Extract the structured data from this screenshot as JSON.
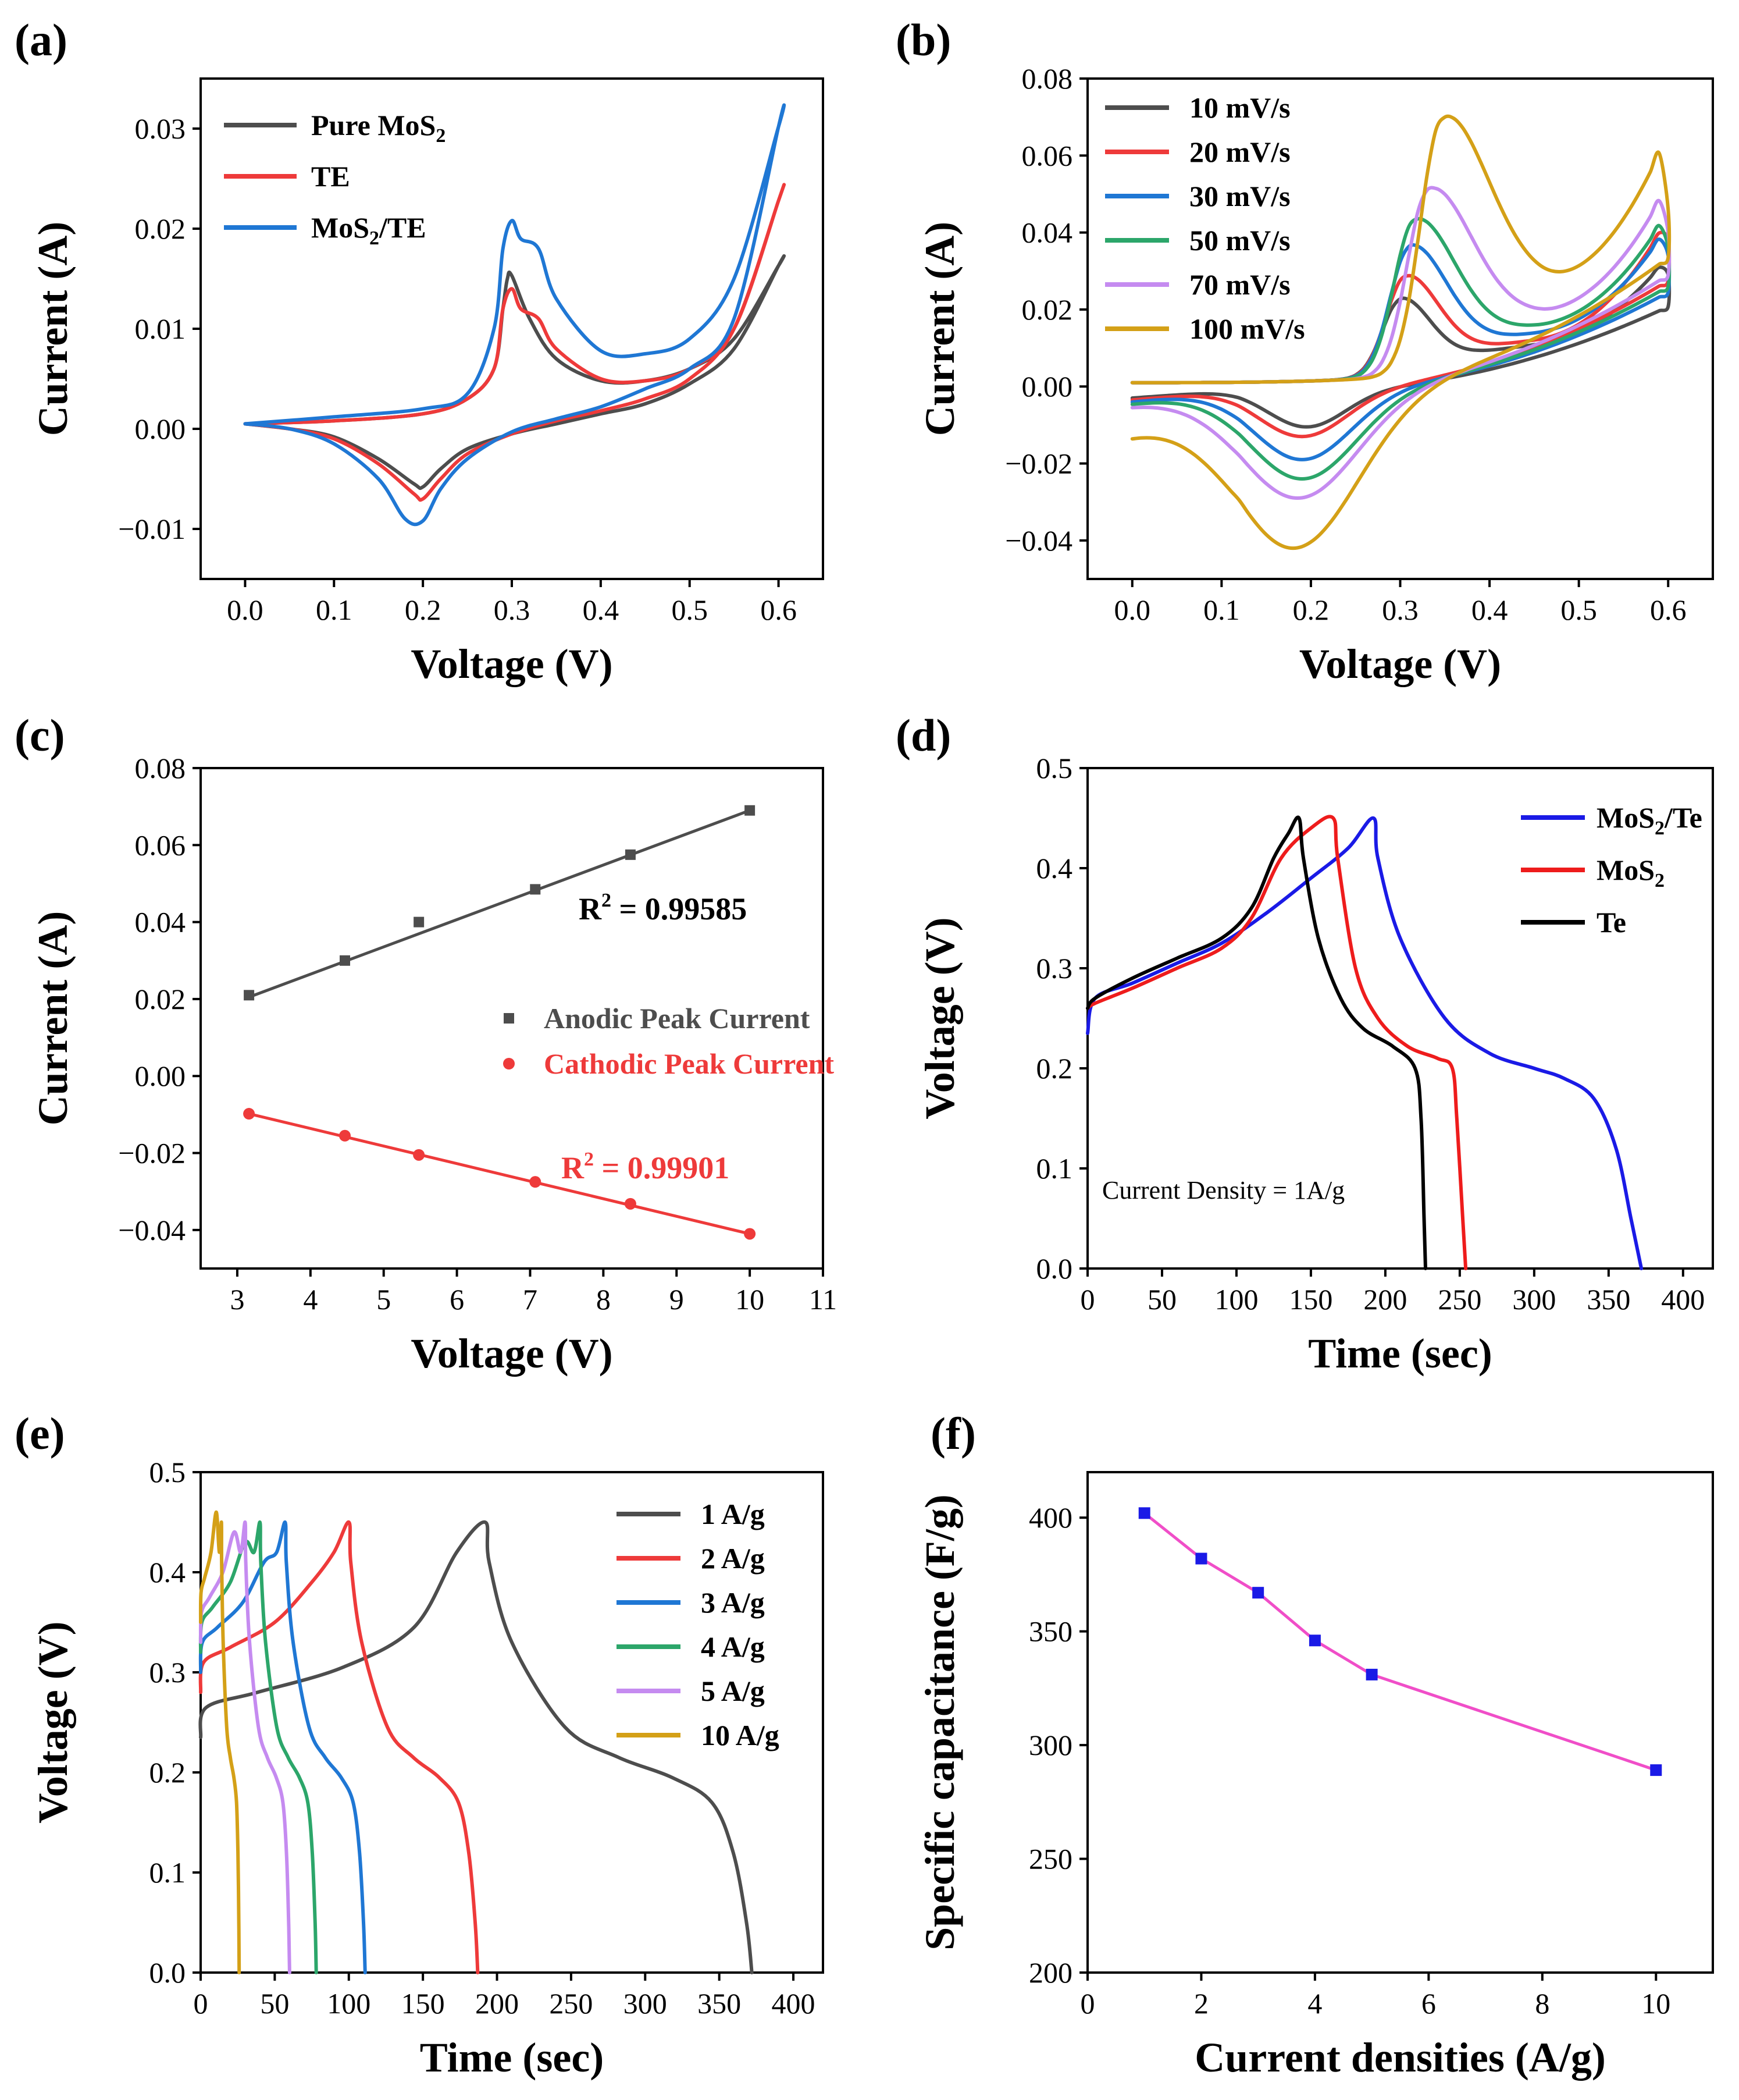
{
  "chart_data": [
    {
      "panel": "(a)",
      "type": "line",
      "xlabel": "Voltage (V)",
      "ylabel": "Current (A)",
      "xlim": [
        -0.05,
        0.65
      ],
      "ylim": [
        -0.015,
        0.035
      ],
      "xticks": [
        0.0,
        0.1,
        0.2,
        0.3,
        0.4,
        0.5,
        0.6
      ],
      "yticks": [
        -0.01,
        0.0,
        0.01,
        0.02,
        0.03
      ],
      "legend_position": "top-left",
      "series": [
        {
          "name": "Pure MoS",
          "name_sub": "2",
          "name_post": "",
          "color": "#4d4d4d",
          "x": [
            0.0,
            0.1,
            0.2,
            0.25,
            0.28,
            0.29,
            0.295,
            0.3,
            0.32,
            0.35,
            0.4,
            0.45,
            0.5,
            0.55,
            0.6,
            0.6,
            0.55,
            0.5,
            0.45,
            0.4,
            0.35,
            0.3,
            0.25,
            0.22,
            0.2,
            0.19,
            0.15,
            0.1,
            0.05,
            0.0
          ],
          "y": [
            0.0005,
            0.0008,
            0.0015,
            0.003,
            0.006,
            0.012,
            0.015,
            0.0153,
            0.011,
            0.007,
            0.0048,
            0.0048,
            0.006,
            0.009,
            0.0163,
            0.0163,
            0.008,
            0.0045,
            0.0025,
            0.0015,
            0.0005,
            -0.0005,
            -0.002,
            -0.004,
            -0.0058,
            -0.0055,
            -0.003,
            -0.0008,
            0.0,
            0.0005
          ]
        },
        {
          "name": "TE",
          "name_sub": "",
          "name_post": "",
          "color": "#ee3a3a",
          "x": [
            0.0,
            0.1,
            0.2,
            0.25,
            0.28,
            0.29,
            0.3,
            0.31,
            0.33,
            0.35,
            0.4,
            0.45,
            0.5,
            0.55,
            0.6,
            0.6,
            0.55,
            0.5,
            0.45,
            0.4,
            0.35,
            0.3,
            0.25,
            0.22,
            0.2,
            0.19,
            0.15,
            0.1,
            0.05,
            0.0
          ],
          "y": [
            0.0005,
            0.0008,
            0.0015,
            0.003,
            0.006,
            0.012,
            0.014,
            0.012,
            0.011,
            0.008,
            0.005,
            0.0048,
            0.006,
            0.01,
            0.0228,
            0.0228,
            0.01,
            0.005,
            0.003,
            0.0018,
            0.0008,
            -0.0005,
            -0.0025,
            -0.005,
            -0.007,
            -0.0065,
            -0.0035,
            -0.001,
            0.0,
            0.0005
          ]
        },
        {
          "name": "MoS",
          "name_sub": "2",
          "name_post": "/TE",
          "color": "#1f77d4",
          "x": [
            0.0,
            0.1,
            0.2,
            0.25,
            0.28,
            0.29,
            0.3,
            0.31,
            0.33,
            0.35,
            0.4,
            0.45,
            0.5,
            0.55,
            0.6,
            0.6,
            0.55,
            0.5,
            0.45,
            0.4,
            0.35,
            0.3,
            0.25,
            0.22,
            0.2,
            0.18,
            0.15,
            0.1,
            0.05,
            0.0
          ],
          "y": [
            0.0005,
            0.0012,
            0.002,
            0.0035,
            0.01,
            0.018,
            0.0208,
            0.019,
            0.018,
            0.013,
            0.0078,
            0.0075,
            0.009,
            0.015,
            0.0302,
            0.0302,
            0.011,
            0.006,
            0.004,
            0.0022,
            0.001,
            -0.0003,
            -0.003,
            -0.006,
            -0.0092,
            -0.009,
            -0.005,
            -0.0015,
            0.0,
            0.0005
          ]
        }
      ]
    },
    {
      "panel": "(b)",
      "type": "line",
      "xlabel": "Voltage (V)",
      "ylabel": "Current (A)",
      "xlim": [
        -0.05,
        0.65
      ],
      "ylim": [
        -0.05,
        0.08
      ],
      "xticks": [
        0.0,
        0.1,
        0.2,
        0.3,
        0.4,
        0.5,
        0.6
      ],
      "yticks": [
        -0.04,
        -0.02,
        0.0,
        0.02,
        0.04,
        0.06,
        0.08
      ],
      "legend_position": "top-left",
      "series": [
        {
          "name": "10 mV/s",
          "color": "#4d4d4d",
          "ia": 0.021,
          "ic": -0.0095,
          "xa": 0.3,
          "xc": 0.195,
          "end": 0.029,
          "tail": 0.008
        },
        {
          "name": "20 mV/s",
          "color": "#ee3a3a",
          "ia": 0.027,
          "ic": -0.012,
          "xa": 0.305,
          "xc": 0.19,
          "end": 0.038,
          "tail": 0.01
        },
        {
          "name": "30 mV/s",
          "color": "#1f77d4",
          "ia": 0.035,
          "ic": -0.018,
          "xa": 0.31,
          "xc": 0.19,
          "end": 0.034,
          "tail": 0.013
        },
        {
          "name": "50 mV/s",
          "color": "#2ca66a",
          "ia": 0.042,
          "ic": -0.023,
          "xa": 0.315,
          "xc": 0.19,
          "end": 0.036,
          "tail": 0.016
        },
        {
          "name": "70 mV/s",
          "color": "#c58bf0",
          "ia": 0.05,
          "ic": -0.028,
          "xa": 0.33,
          "xc": 0.185,
          "end": 0.04,
          "tail": 0.021
        },
        {
          "name": "100 mV/s",
          "color": "#d4a017",
          "ia": 0.069,
          "ic": -0.041,
          "xa": 0.345,
          "xc": 0.18,
          "end": 0.046,
          "tail": 0.033
        }
      ]
    },
    {
      "panel": "(c)",
      "type": "scatter",
      "xlabel": "Voltage (V)",
      "ylabel": "Current (A)",
      "xlim": [
        2.5,
        11
      ],
      "ylim": [
        -0.05,
        0.08
      ],
      "xticks": [
        3,
        4,
        5,
        6,
        7,
        8,
        9,
        10,
        11
      ],
      "yticks": [
        -0.04,
        -0.02,
        0.0,
        0.02,
        0.04,
        0.06,
        0.08
      ],
      "legend_position": "center",
      "series": [
        {
          "name": "Anodic Peak Current",
          "color": "#4d4d4d",
          "marker": "square",
          "x": [
            3.16,
            4.47,
            5.48,
            7.07,
            8.37,
            10.0
          ],
          "y": [
            0.021,
            0.03,
            0.04,
            0.0485,
            0.0575,
            0.069
          ],
          "fit": [
            [
              3.16,
              0.0205
            ],
            [
              10.0,
              0.069
            ]
          ],
          "r2_label": "R",
          "r2_sup": "2",
          "r2_value": " = 0.99585"
        },
        {
          "name": "Cathodic Peak Current",
          "color": "#ee3a3a",
          "marker": "circle",
          "x": [
            3.16,
            4.47,
            5.48,
            7.07,
            8.37,
            10.0
          ],
          "y": [
            -0.0098,
            -0.0155,
            -0.0205,
            -0.0275,
            -0.0332,
            -0.041
          ],
          "fit": [
            [
              3.16,
              -0.0098
            ],
            [
              10.0,
              -0.041
            ]
          ],
          "r2_label": "R",
          "r2_sup": "2",
          "r2_value": " = 0.99901"
        }
      ]
    },
    {
      "panel": "(d)",
      "type": "line",
      "xlabel": "Time (sec)",
      "ylabel": "Voltage (V)",
      "xlim": [
        0,
        420
      ],
      "ylim": [
        0,
        0.5
      ],
      "xticks": [
        0,
        50,
        100,
        150,
        200,
        250,
        300,
        350,
        400
      ],
      "yticks": [
        0.0,
        0.1,
        0.2,
        0.3,
        0.4,
        0.5
      ],
      "legend_position": "top-right",
      "annotation": "Current Density = 1A/g",
      "series": [
        {
          "name": "MoS",
          "name_sub": "2",
          "name_post": "/Te",
          "color": "#1a1ae6",
          "x": [
            0,
            5,
            30,
            60,
            90,
            120,
            150,
            175,
            192,
            195,
            210,
            240,
            270,
            300,
            320,
            340,
            355,
            365,
            372
          ],
          "y": [
            0.235,
            0.27,
            0.285,
            0.305,
            0.325,
            0.355,
            0.39,
            0.42,
            0.45,
            0.41,
            0.33,
            0.25,
            0.215,
            0.2,
            0.19,
            0.17,
            0.12,
            0.05,
            0.0
          ]
        },
        {
          "name": "MoS",
          "name_sub": "2",
          "name_post": "",
          "color": "#ee1c1c",
          "x": [
            0,
            5,
            30,
            60,
            90,
            110,
            130,
            150,
            165,
            168,
            180,
            195,
            215,
            235,
            245,
            248,
            252,
            254
          ],
          "y": [
            0.26,
            0.265,
            0.28,
            0.3,
            0.32,
            0.35,
            0.41,
            0.44,
            0.45,
            0.41,
            0.3,
            0.25,
            0.222,
            0.21,
            0.2,
            0.15,
            0.05,
            0.0
          ]
        },
        {
          "name": "Te",
          "name_sub": "",
          "name_post": "",
          "color": "#000000",
          "x": [
            0,
            5,
            30,
            60,
            90,
            110,
            125,
            135,
            142,
            145,
            155,
            170,
            185,
            205,
            220,
            224,
            226,
            227
          ],
          "y": [
            0.26,
            0.27,
            0.29,
            0.31,
            0.33,
            0.36,
            0.41,
            0.435,
            0.45,
            0.41,
            0.33,
            0.27,
            0.24,
            0.222,
            0.2,
            0.15,
            0.05,
            0.0
          ]
        }
      ]
    },
    {
      "panel": "(e)",
      "type": "line",
      "xlabel": "Time (sec)",
      "ylabel": "Voltage (V)",
      "xlim": [
        0,
        420
      ],
      "ylim": [
        0,
        0.5
      ],
      "xticks": [
        0,
        50,
        100,
        150,
        200,
        250,
        300,
        350,
        400
      ],
      "yticks": [
        0.0,
        0.1,
        0.2,
        0.3,
        0.4,
        0.5
      ],
      "legend_position": "top-right",
      "series": [
        {
          "name": "1 A/g",
          "color": "#4d4d4d",
          "tc": 192,
          "td": 372,
          "v0": 0.235
        },
        {
          "name": "2 A/g",
          "color": "#ee3a3a",
          "tc": 100,
          "td": 187,
          "v0": 0.28
        },
        {
          "name": "3 A/g",
          "color": "#1f77d4",
          "tc": 57,
          "td": 111,
          "v0": 0.3
        },
        {
          "name": "4 A/g",
          "color": "#2ca66a",
          "tc": 40,
          "td": 78,
          "v0": 0.32
        },
        {
          "name": "5 A/g",
          "color": "#c58bf0",
          "tc": 30,
          "td": 60,
          "v0": 0.33
        },
        {
          "name": "10 A/g",
          "color": "#d4a017",
          "tc": 14,
          "td": 26,
          "v0": 0.35
        }
      ]
    },
    {
      "panel": "(f)",
      "type": "line",
      "xlabel": "Current densities (A/g)",
      "ylabel": "Specific capacitance (F/g)",
      "xlim": [
        0,
        11
      ],
      "ylim": [
        200,
        420
      ],
      "xticks": [
        0,
        2,
        4,
        6,
        8,
        10
      ],
      "yticks": [
        200,
        250,
        300,
        350,
        400
      ],
      "series": [
        {
          "name": "Specific capacitance",
          "line_color": "#f04ec8",
          "marker_color": "#1a1ae6",
          "marker": "square",
          "x": [
            1,
            2,
            3,
            4,
            5,
            10
          ],
          "y": [
            402,
            382,
            367,
            346,
            331,
            289
          ]
        }
      ]
    }
  ]
}
